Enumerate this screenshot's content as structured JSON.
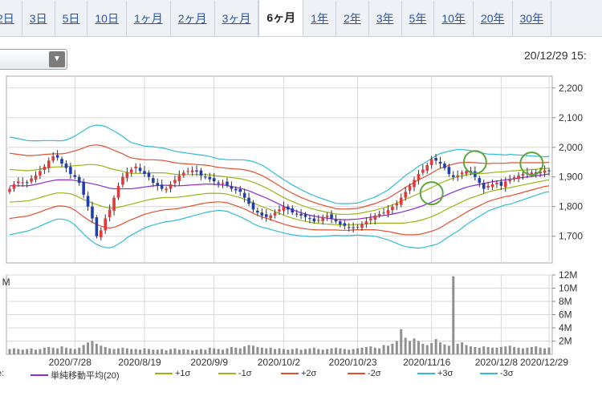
{
  "tabs": {
    "items": [
      "2日",
      "3日",
      "5日",
      "10日",
      "1ヶ月",
      "2ヶ月",
      "3ヶ月",
      "6ヶ月",
      "1年",
      "2年",
      "3年",
      "5年",
      "10年",
      "20年",
      "30年"
    ],
    "active_index": 7
  },
  "period_select": {
    "value": "",
    "arrow_icon": "triangle-down-icon"
  },
  "timestamp": "20/12/29 15:",
  "volume_label_fragment": "t M",
  "legend_prefix": "e:",
  "legend": [
    {
      "label": "単純移動平均(20)",
      "color": "#8e2bd1"
    },
    {
      "label": "+1σ",
      "color": "#9ab515"
    },
    {
      "label": "-1σ",
      "color": "#9ab515"
    },
    {
      "label": "+2σ",
      "color": "#e2502f"
    },
    {
      "label": "-2σ",
      "color": "#e2502f"
    },
    {
      "label": "+3σ",
      "color": "#30bcd4"
    },
    {
      "label": "-3σ",
      "color": "#30bcd4"
    }
  ],
  "chart_data": {
    "type": "candlestick",
    "y_ticks": [
      "1,700",
      "1,800",
      "1,900",
      "2,000",
      "2,100",
      "2,200"
    ],
    "volume_ticks": [
      "2M",
      "4M",
      "6M",
      "8M",
      "10M",
      "12M"
    ],
    "x_ticks": [
      "2020/7/28",
      "2020/8/19",
      "2020/9/9",
      "2020/10/2",
      "2020/10/23",
      "2020/11/16",
      "2020/12/8",
      "2020/12/29"
    ],
    "ylim": [
      1610,
      2240
    ],
    "volume_ylim": [
      0,
      12
    ],
    "grid": true,
    "colors": {
      "up": "#e03a3a",
      "down": "#1f3fae",
      "volume": "#909090",
      "sma": "#8e2bd1",
      "s1": "#9ab515",
      "s2": "#e2502f",
      "s3": "#30bcd4"
    },
    "series": {
      "close": [
        1860,
        1875,
        1885,
        1882,
        1880,
        1895,
        1905,
        1920,
        1935,
        1955,
        1970,
        1965,
        1945,
        1930,
        1910,
        1900,
        1880,
        1840,
        1800,
        1760,
        1700,
        1720,
        1760,
        1790,
        1830,
        1870,
        1900,
        1915,
        1925,
        1935,
        1920,
        1910,
        1900,
        1880,
        1870,
        1860,
        1860,
        1875,
        1890,
        1905,
        1915,
        1920,
        1922,
        1918,
        1905,
        1900,
        1892,
        1885,
        1878,
        1880,
        1872,
        1860,
        1855,
        1850,
        1830,
        1810,
        1790,
        1780,
        1770,
        1765,
        1770,
        1780,
        1790,
        1800,
        1790,
        1780,
        1775,
        1770,
        1765,
        1760,
        1750,
        1755,
        1765,
        1770,
        1760,
        1750,
        1740,
        1735,
        1730,
        1728,
        1732,
        1740,
        1750,
        1760,
        1770,
        1775,
        1780,
        1788,
        1800,
        1810,
        1830,
        1850,
        1870,
        1890,
        1910,
        1925,
        1940,
        1960,
        1955,
        1945,
        1930,
        1910,
        1900,
        1905,
        1915,
        1920,
        1915,
        1900,
        1880,
        1860,
        1870,
        1875,
        1880,
        1870,
        1885,
        1890,
        1898,
        1905,
        1910,
        1912,
        1915,
        1908,
        1918,
        1922,
        1920
      ],
      "sma": [
        1870,
        1870,
        1870,
        1870,
        1870,
        1872,
        1875,
        1878,
        1882,
        1885,
        1888,
        1890,
        1890,
        1890,
        1890,
        1888,
        1885,
        1882,
        1880,
        1877,
        1874,
        1870,
        1866,
        1862,
        1860,
        1860,
        1860,
        1860,
        1860,
        1862,
        1864,
        1866,
        1868,
        1870,
        1871,
        1872,
        1872,
        1871,
        1870,
        1870,
        1871,
        1872,
        1873,
        1874,
        1875,
        1876,
        1876,
        1875,
        1874,
        1873,
        1871,
        1868,
        1865,
        1862,
        1858,
        1853,
        1847,
        1841,
        1835,
        1829,
        1822,
        1815,
        1808,
        1801,
        1795,
        1789,
        1784,
        1779,
        1775,
        1771,
        1768,
        1765,
        1763,
        1761,
        1759,
        1757,
        1756,
        1756,
        1756,
        1757,
        1758,
        1760,
        1762,
        1764,
        1766,
        1768,
        1770,
        1772,
        1775,
        1778,
        1781,
        1785,
        1789,
        1793,
        1798,
        1803,
        1809,
        1815,
        1822,
        1829,
        1836,
        1843,
        1849,
        1855,
        1860,
        1865,
        1869,
        1872,
        1875,
        1878,
        1881,
        1884,
        1886,
        1888,
        1890,
        1892,
        1894,
        1896,
        1898,
        1900,
        1902,
        1904,
        1906,
        1908,
        1910
      ],
      "sd": [
        55,
        54,
        53,
        52,
        51,
        50,
        49,
        48,
        47,
        46,
        45,
        44,
        44,
        45,
        47,
        50,
        54,
        58,
        62,
        65,
        67,
        68,
        68,
        67,
        65,
        62,
        59,
        55,
        52,
        50,
        48,
        46,
        45,
        44,
        43,
        42,
        41,
        40,
        39,
        38,
        37,
        36,
        35,
        34,
        33,
        32,
        31,
        30,
        29,
        29,
        29,
        30,
        31,
        32,
        33,
        34,
        35,
        35,
        35,
        34,
        33,
        32,
        31,
        30,
        29,
        28,
        27,
        26,
        25,
        24,
        23,
        22,
        21,
        20,
        19,
        18,
        18,
        18,
        18,
        18,
        18,
        19,
        20,
        21,
        22,
        24,
        26,
        28,
        31,
        34,
        37,
        40,
        42,
        44,
        46,
        47,
        48,
        49,
        50,
        50,
        49,
        48,
        47,
        46,
        44,
        42,
        40,
        38,
        36,
        34,
        32,
        31,
        30,
        29,
        28,
        28,
        27,
        26,
        25,
        24,
        23,
        22,
        21,
        20,
        20
      ],
      "volume": [
        0.8,
        0.9,
        0.8,
        0.7,
        0.8,
        0.9,
        0.7,
        0.8,
        1.0,
        1.1,
        1.0,
        0.9,
        1.2,
        1.0,
        0.9,
        0.8,
        1.0,
        1.4,
        1.8,
        2.0,
        1.6,
        1.3,
        1.1,
        0.9,
        0.8,
        0.9,
        1.0,
        0.9,
        0.8,
        0.8,
        0.7,
        0.9,
        0.8,
        0.7,
        0.7,
        0.8,
        0.6,
        0.8,
        0.9,
        0.7,
        0.8,
        0.7,
        0.6,
        0.7,
        0.8,
        0.7,
        1.0,
        0.9,
        0.8,
        0.7,
        0.9,
        1.1,
        1.0,
        0.9,
        1.2,
        1.4,
        1.3,
        1.1,
        1.0,
        0.9,
        1.0,
        0.8,
        0.9,
        0.8,
        0.7,
        0.8,
        0.9,
        0.7,
        0.8,
        0.9,
        1.0,
        0.8,
        0.7,
        0.8,
        0.9,
        1.0,
        0.9,
        0.8,
        0.7,
        0.8,
        0.9,
        1.0,
        1.1,
        1.2,
        1.0,
        0.9,
        1.4,
        1.3,
        1.6,
        2.0,
        3.8,
        2.5,
        2.0,
        2.4,
        2.0,
        1.6,
        1.4,
        1.7,
        2.3,
        1.8,
        1.5,
        1.3,
        11.8,
        1.6,
        1.8,
        1.4,
        1.2,
        1.1,
        1.0,
        1.2,
        1.1,
        1.0,
        1.0,
        1.1,
        1.2,
        1.3,
        1.1,
        1.0,
        0.9,
        1.0,
        1.1,
        1.2,
        1.0,
        0.9,
        1.0
      ]
    }
  }
}
